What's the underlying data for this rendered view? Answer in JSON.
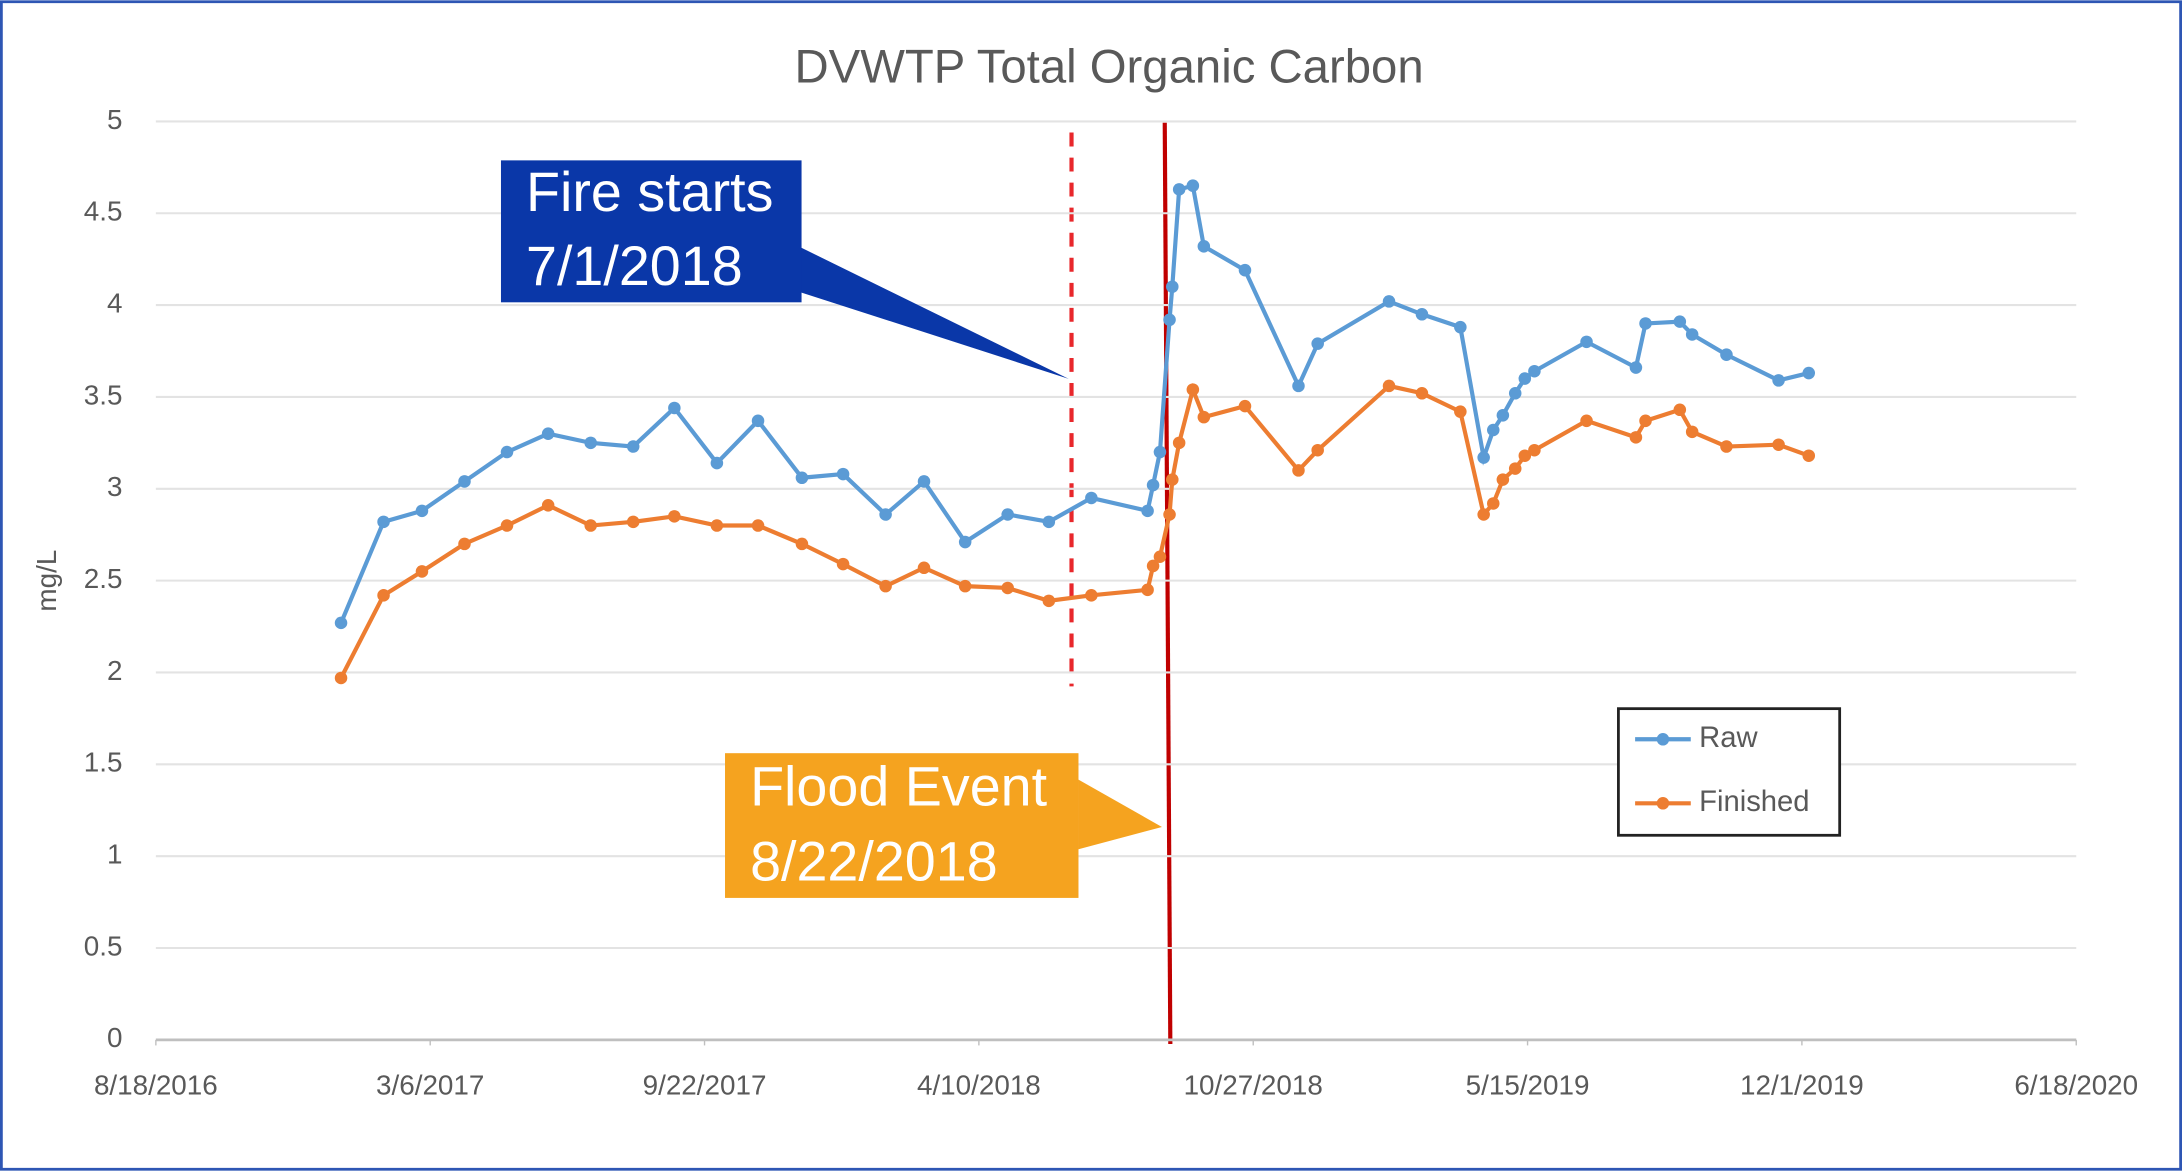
{
  "chart_data": {
    "type": "line",
    "title": "DVWTP Total Organic Carbon",
    "y_label": "mg/L",
    "x": [
      "12/31/2016",
      "1/31/2017",
      "2/28/2017",
      "3/31/2017",
      "5/1/2017",
      "5/31/2017",
      "7/1/2017",
      "8/1/2017",
      "8/31/2017",
      "10/1/2017",
      "10/31/2017",
      "12/2/2017",
      "1/1/2018",
      "2/1/2018",
      "3/1/2018",
      "3/31/2018",
      "5/1/2018",
      "5/31/2018",
      "7/1/2018",
      "8/11/2018",
      "8/15/2018",
      "8/20/2018",
      "8/27/2018",
      "8/29/2018",
      "9/3/2018",
      "9/13/2018",
      "9/21/2018",
      "10/21/2018",
      "11/29/2018",
      "12/13/2018",
      "2/3/2019",
      "2/27/2019",
      "3/27/2019",
      "4/13/2019",
      "4/20/2019",
      "4/27/2019",
      "5/6/2019",
      "5/13/2019",
      "5/20/2019",
      "6/27/2019",
      "8/2/2019",
      "8/9/2019",
      "9/3/2019",
      "9/12/2019",
      "10/7/2019",
      "11/14/2019",
      "12/6/2019"
    ],
    "series": [
      {
        "name": "Raw",
        "color": "#5b9bd5",
        "values": [
          2.27,
          2.82,
          2.88,
          3.04,
          3.2,
          3.3,
          3.25,
          3.23,
          3.44,
          3.14,
          3.37,
          3.06,
          3.08,
          2.86,
          3.04,
          2.71,
          2.86,
          2.82,
          2.95,
          2.88,
          3.02,
          3.2,
          3.92,
          4.1,
          4.63,
          4.65,
          4.32,
          4.19,
          3.56,
          3.79,
          4.02,
          3.95,
          3.88,
          3.17,
          3.32,
          3.4,
          3.52,
          3.6,
          3.64,
          3.8,
          3.66,
          3.9,
          3.91,
          3.84,
          3.73,
          3.59,
          3.63
        ]
      },
      {
        "name": "Finished",
        "color": "#ed7d31",
        "values": [
          1.97,
          2.42,
          2.55,
          2.7,
          2.8,
          2.91,
          2.8,
          2.82,
          2.85,
          2.8,
          2.8,
          2.7,
          2.59,
          2.47,
          2.57,
          2.47,
          2.46,
          2.39,
          2.42,
          2.45,
          2.58,
          2.63,
          2.86,
          3.05,
          3.25,
          3.54,
          3.39,
          3.45,
          3.1,
          3.21,
          3.56,
          3.52,
          3.42,
          2.86,
          2.92,
          3.05,
          3.11,
          3.18,
          3.21,
          3.37,
          3.28,
          3.37,
          3.43,
          3.31,
          3.23,
          3.24,
          3.18
        ]
      }
    ],
    "xlim": [
      "8/18/2016",
      "6/18/2020"
    ],
    "xticks": [
      "8/18/2016",
      "3/6/2017",
      "9/22/2017",
      "4/10/2018",
      "10/27/2018",
      "5/15/2019",
      "12/1/2019",
      "6/18/2020"
    ],
    "ylim": [
      0,
      5
    ],
    "yticks": [
      0,
      0.5,
      1,
      1.5,
      2,
      2.5,
      3,
      3.5,
      4,
      4.5,
      5
    ],
    "grid": true,
    "legend": "lower right",
    "annotations": [
      {
        "lines": [
          "Fire starts",
          "7/1/2018"
        ],
        "color": "#0a37a8"
      },
      {
        "lines": [
          "Flood Event",
          "8/22/2018"
        ],
        "color": "#f5a31f"
      }
    ]
  }
}
